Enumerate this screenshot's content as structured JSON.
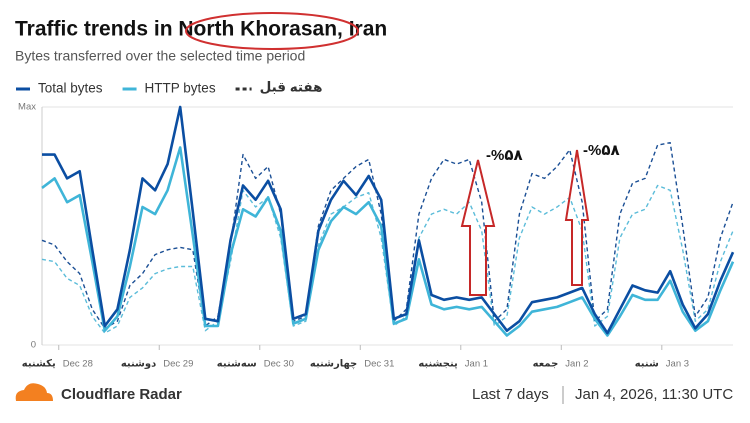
{
  "chart_data": {
    "type": "line",
    "title": "Traffic trends in North Khorasan, Iran",
    "subtitle": "Bytes transferred over the selected time period",
    "x": [
      -4,
      -1,
      2,
      5,
      8,
      11,
      14,
      17,
      20,
      23,
      26,
      29,
      32,
      35,
      38,
      41,
      44,
      47,
      50,
      53,
      56,
      59,
      62,
      65,
      68,
      71,
      74,
      77,
      80,
      83,
      86,
      89,
      92,
      95,
      98,
      101,
      104,
      107,
      110,
      113,
      116,
      119,
      122,
      125,
      128,
      131,
      134,
      137,
      140,
      143,
      146,
      149,
      152,
      155,
      158,
      161
    ],
    "xlim": [
      -4,
      161
    ],
    "xticks": [
      {
        "value": 0,
        "label": "Dec 28"
      },
      {
        "value": 24,
        "label": "Dec 29"
      },
      {
        "value": 48,
        "label": "Dec 30"
      },
      {
        "value": 72,
        "label": "Dec 31"
      },
      {
        "value": 96,
        "label": "Jan 1"
      },
      {
        "value": 120,
        "label": "Jan 2"
      },
      {
        "value": 144,
        "label": "Jan 3"
      }
    ],
    "weekday_labels": [
      "یکشنبه",
      "دوشنبه",
      "سه‌شنبه",
      "چهارشنبه",
      "پنجشنبه",
      "جمعه",
      "شنبه"
    ],
    "ylim": [
      0,
      1
    ],
    "yticks": [
      0,
      {
        "value": 1,
        "label": "Max"
      }
    ],
    "series": [
      {
        "name": "Total bytes",
        "color": "#0b4ea2",
        "values": [
          0.8,
          0.8,
          0.7,
          0.73,
          0.4,
          0.08,
          0.15,
          0.4,
          0.7,
          0.65,
          0.76,
          1.0,
          0.56,
          0.11,
          0.1,
          0.44,
          0.67,
          0.61,
          0.69,
          0.57,
          0.11,
          0.13,
          0.48,
          0.61,
          0.69,
          0.63,
          0.71,
          0.61,
          0.11,
          0.13,
          0.44,
          0.21,
          0.19,
          0.2,
          0.19,
          0.2,
          0.13,
          0.06,
          0.1,
          0.18,
          0.19,
          0.2,
          0.22,
          0.24,
          0.13,
          0.05,
          0.15,
          0.25,
          0.23,
          0.22,
          0.31,
          0.17,
          0.07,
          0.13,
          0.27,
          0.39
        ]
      },
      {
        "name": "HTTP bytes",
        "color": "#3fb5d8",
        "values": [
          0.66,
          0.7,
          0.6,
          0.63,
          0.35,
          0.06,
          0.12,
          0.33,
          0.58,
          0.55,
          0.65,
          0.83,
          0.46,
          0.08,
          0.08,
          0.38,
          0.57,
          0.54,
          0.62,
          0.48,
          0.09,
          0.11,
          0.4,
          0.52,
          0.58,
          0.55,
          0.6,
          0.5,
          0.09,
          0.11,
          0.36,
          0.17,
          0.15,
          0.16,
          0.15,
          0.16,
          0.1,
          0.04,
          0.08,
          0.14,
          0.15,
          0.16,
          0.18,
          0.2,
          0.11,
          0.04,
          0.12,
          0.21,
          0.19,
          0.19,
          0.27,
          0.14,
          0.06,
          0.1,
          0.23,
          0.35
        ]
      }
    ],
    "comparison": {
      "name": "هفته قبل",
      "series": [
        {
          "color": "#1b4f95",
          "values": [
            0.44,
            0.42,
            0.35,
            0.3,
            0.15,
            0.07,
            0.1,
            0.25,
            0.3,
            0.38,
            0.4,
            0.41,
            0.4,
            0.08,
            0.12,
            0.42,
            0.8,
            0.7,
            0.75,
            0.55,
            0.1,
            0.12,
            0.5,
            0.65,
            0.7,
            0.75,
            0.78,
            0.55,
            0.1,
            0.15,
            0.55,
            0.7,
            0.78,
            0.76,
            0.78,
            0.6,
            0.1,
            0.15,
            0.55,
            0.72,
            0.7,
            0.75,
            0.82,
            0.6,
            0.1,
            0.15,
            0.55,
            0.68,
            0.7,
            0.84,
            0.85,
            0.5,
            0.12,
            0.2,
            0.45,
            0.6
          ]
        },
        {
          "color": "#5bbcd9",
          "values": [
            0.36,
            0.35,
            0.28,
            0.25,
            0.12,
            0.05,
            0.08,
            0.2,
            0.24,
            0.3,
            0.32,
            0.33,
            0.33,
            0.06,
            0.1,
            0.35,
            0.65,
            0.58,
            0.62,
            0.45,
            0.08,
            0.1,
            0.42,
            0.55,
            0.58,
            0.62,
            0.64,
            0.45,
            0.08,
            0.12,
            0.45,
            0.55,
            0.57,
            0.55,
            0.6,
            0.48,
            0.08,
            0.12,
            0.45,
            0.58,
            0.55,
            0.58,
            0.62,
            0.48,
            0.08,
            0.12,
            0.45,
            0.55,
            0.57,
            0.67,
            0.65,
            0.4,
            0.1,
            0.15,
            0.35,
            0.48
          ]
        }
      ]
    },
    "annotations": [
      "-%۵۸",
      "-%۵۸"
    ]
  },
  "footer": {
    "brand": "Cloudflare Radar",
    "range": "Last 7 days",
    "timestamp": "Jan 4, 2026, 11:30 UTC"
  }
}
